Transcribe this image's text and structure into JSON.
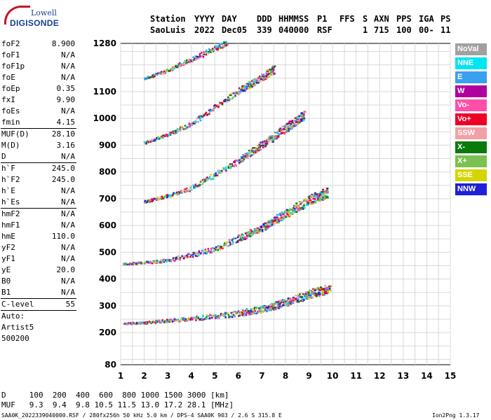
{
  "logo": {
    "line1": "Lowell",
    "line2": "DIGISONDE"
  },
  "header": {
    "labels": [
      "Station",
      "YYYY",
      "DAY",
      "DDD",
      "HHMMSS",
      "P1",
      "FFS",
      "S",
      "AXN",
      "PPS",
      "IGA",
      "PS"
    ],
    "values": [
      "SaoLuis",
      "2022",
      "Dec05",
      "339",
      "040000",
      "RSF",
      "1",
      "715",
      "100",
      "00-",
      "11"
    ]
  },
  "params": {
    "group1": [
      {
        "name": "foF2",
        "value": "8.900"
      },
      {
        "name": "foF1",
        "value": "N/A"
      },
      {
        "name": "foF1p",
        "value": "N/A"
      },
      {
        "name": "foE",
        "value": "N/A"
      },
      {
        "name": "foEp",
        "value": "0.35"
      },
      {
        "name": "fxI",
        "value": "9.90"
      },
      {
        "name": "foEs",
        "value": "N/A"
      },
      {
        "name": "fmin",
        "value": "4.15"
      }
    ],
    "group2": [
      {
        "name": "MUF(D)",
        "value": "28.10"
      },
      {
        "name": "M(D)",
        "value": "3.16"
      },
      {
        "name": "D",
        "value": "N/A"
      }
    ],
    "group3": [
      {
        "name": "h`F",
        "value": "245.0"
      },
      {
        "name": "h`F2",
        "value": "245.0"
      },
      {
        "name": "h`E",
        "value": "N/A"
      },
      {
        "name": "h`Es",
        "value": "N/A"
      }
    ],
    "group4": [
      {
        "name": "hmF2",
        "value": "N/A"
      },
      {
        "name": "hmF1",
        "value": "N/A"
      },
      {
        "name": "hmE",
        "value": "110.0"
      },
      {
        "name": "yF2",
        "value": "N/A"
      },
      {
        "name": "yF1",
        "value": "N/A"
      },
      {
        "name": "yE",
        "value": "20.0"
      },
      {
        "name": "B0",
        "value": "N/A"
      },
      {
        "name": "B1",
        "value": "N/A"
      }
    ],
    "clevel": {
      "name": "C-level",
      "value": "55"
    },
    "auto": [
      "Auto:",
      "Artist5",
      "500200"
    ]
  },
  "legend": [
    {
      "label": "NoVal",
      "color": "#a0a0a0"
    },
    {
      "label": "NNE",
      "color": "#00e5f0"
    },
    {
      "label": "E",
      "color": "#3aa0f0"
    },
    {
      "label": "W",
      "color": "#b0009e"
    },
    {
      "label": "Vo-",
      "color": "#ff4fa8"
    },
    {
      "label": "Vo+",
      "color": "#ee0026"
    },
    {
      "label": "SSW",
      "color": "#f2a0a6"
    },
    {
      "label": "X-",
      "color": "#0a7a0a"
    },
    {
      "label": "X+",
      "color": "#7bc050"
    },
    {
      "label": "SSE",
      "color": "#d4d400"
    },
    {
      "label": "NNW",
      "color": "#2020d8"
    }
  ],
  "footer": {
    "d_row": "D     100  200  400  600  800 1000 1500 3000 [km]",
    "muf_row": "MUF   9.3  9.4  9.8 10.5 11.5 13.0 17.2 28.1 [MHz]",
    "info": "SAA0K_2022339040000.RSF / 280fx256h 50 kHz 5.0 km / DPS-4 SAA0K 903 / 2.6 S 315.8 E",
    "version": "Ion2Png 1.3.17"
  },
  "chart_data": {
    "type": "scatter",
    "xlim": [
      1,
      15
    ],
    "ylim": [
      80,
      1280
    ],
    "x_ticks": [
      "1",
      "2",
      "3",
      "4",
      "5",
      "6",
      "7",
      "8",
      "9",
      "10",
      "11",
      "12",
      "13",
      "14",
      "15"
    ],
    "y_ticks": [
      "80",
      "200",
      "300",
      "400",
      "500",
      "600",
      "700",
      "800",
      "900",
      "1000",
      "1100",
      "1280"
    ],
    "grid": true,
    "series": [
      {
        "points": [
          [
            1.1,
            235
          ],
          [
            2.0,
            238
          ],
          [
            3.0,
            245
          ],
          [
            4.0,
            252
          ],
          [
            5.0,
            260
          ],
          [
            6.0,
            270
          ],
          [
            7.0,
            285
          ],
          [
            8.0,
            310
          ],
          [
            9.0,
            340
          ],
          [
            9.9,
            360
          ]
        ]
      },
      {
        "points": [
          [
            1.1,
            458
          ],
          [
            2.0,
            462
          ],
          [
            3.0,
            470
          ],
          [
            4.0,
            490
          ],
          [
            5.0,
            510
          ],
          [
            6.0,
            550
          ],
          [
            7.0,
            590
          ],
          [
            8.0,
            640
          ],
          [
            9.0,
            690
          ],
          [
            9.8,
            720
          ]
        ]
      },
      {
        "points": [
          [
            2.0,
            690
          ],
          [
            3.0,
            710
          ],
          [
            4.0,
            740
          ],
          [
            5.0,
            790
          ],
          [
            6.0,
            840
          ],
          [
            7.0,
            900
          ],
          [
            8.0,
            960
          ],
          [
            8.8,
            1010
          ]
        ]
      },
      {
        "points": [
          [
            2.0,
            910
          ],
          [
            3.0,
            940
          ],
          [
            4.0,
            980
          ],
          [
            5.0,
            1040
          ],
          [
            6.0,
            1100
          ],
          [
            6.8,
            1140
          ],
          [
            7.5,
            1180
          ]
        ]
      },
      {
        "points": [
          [
            2.0,
            1150
          ],
          [
            3.0,
            1180
          ],
          [
            4.0,
            1220
          ],
          [
            5.0,
            1260
          ],
          [
            5.5,
            1280
          ]
        ]
      }
    ]
  }
}
